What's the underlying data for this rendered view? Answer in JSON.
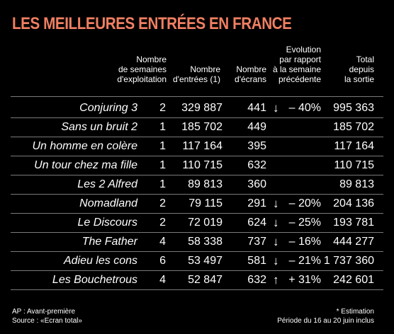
{
  "title": "LES MEILLEURES ENTRÉES EN FRANCE",
  "headers": {
    "weeks": [
      "Nombre",
      "de semaines",
      "d'exploitation"
    ],
    "entries": [
      "Nombre",
      "d'entrées (1)"
    ],
    "screens": [
      "Nombre",
      "d'écrans"
    ],
    "evolution": [
      "Evolution",
      "par rapport",
      "à la semaine",
      "précédente"
    ],
    "total": [
      "Total",
      "depuis",
      "la sortie"
    ]
  },
  "rows": [
    {
      "film": "Conjuring 3",
      "weeks": "2",
      "entries": "329 887",
      "screens": "441",
      "arrow": "↓",
      "evolution": "– 40%",
      "total": "995 363"
    },
    {
      "film": "Sans un bruit 2",
      "weeks": "1",
      "entries": "185 702",
      "screens": "449",
      "arrow": "",
      "evolution": "",
      "total": "185 702"
    },
    {
      "film": "Un homme en colère",
      "weeks": "1",
      "entries": "117 164",
      "screens": "395",
      "arrow": "",
      "evolution": "",
      "total": "117 164"
    },
    {
      "film": "Un tour chez ma fille",
      "weeks": "1",
      "entries": "110 715",
      "screens": "632",
      "arrow": "",
      "evolution": "",
      "total": "110 715"
    },
    {
      "film": "Les 2 Alfred",
      "weeks": "1",
      "entries": "89 813",
      "screens": "360",
      "arrow": "",
      "evolution": "",
      "total": "89 813"
    },
    {
      "film": "Nomadland",
      "weeks": "2",
      "entries": "79 115",
      "screens": "291",
      "arrow": "↓",
      "evolution": "– 20%",
      "total": "204 136"
    },
    {
      "film": "Le Discours",
      "weeks": "2",
      "entries": "72 019",
      "screens": "624",
      "arrow": "↓",
      "evolution": "– 25%",
      "total": "193 781"
    },
    {
      "film": "The Father",
      "weeks": "4",
      "entries": "58 338",
      "screens": "737",
      "arrow": "↓",
      "evolution": "– 16%",
      "total": "444 277"
    },
    {
      "film": "Adieu les cons",
      "weeks": "6",
      "entries": "53 497",
      "screens": "581",
      "arrow": "↓",
      "evolution": "– 21%",
      "total": "1 737 360"
    },
    {
      "film": "Les Bouchetrous",
      "weeks": "4",
      "entries": "52 847",
      "screens": "632",
      "arrow": "↑",
      "evolution": "+ 31%",
      "total": "242 601"
    }
  ],
  "footer": {
    "ap": "AP : Avant-première",
    "source": "Source : «Ecran total»",
    "estimation": "* Estimation",
    "period": "Période du 16 au 20 juin inclus"
  }
}
